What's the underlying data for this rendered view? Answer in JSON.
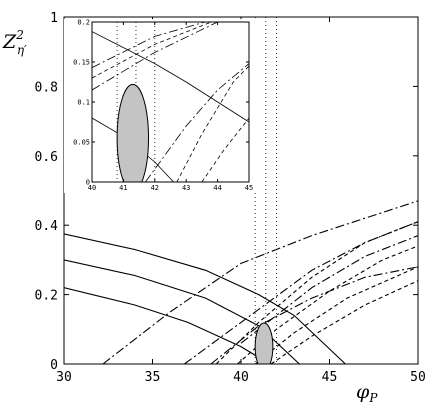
{
  "chart_data": [
    {
      "type": "line",
      "xlabel": "φ",
      "xlabel_sub": "P",
      "ylabel": "Z",
      "ylabel_sup": "2",
      "ylabel_sub": "η′",
      "xlim": [
        30,
        50
      ],
      "ylim": [
        0,
        1
      ],
      "x_ticks": [
        {
          "value": 30,
          "label": "30"
        },
        {
          "value": 35,
          "label": "35"
        },
        {
          "value": 40,
          "label": "40"
        },
        {
          "value": 45,
          "label": "45"
        },
        {
          "value": 50,
          "label": "50"
        }
      ],
      "y_ticks": [
        {
          "value": 0,
          "label": "0"
        },
        {
          "value": 0.2,
          "label": "0.2"
        },
        {
          "value": 0.4,
          "label": "0.4"
        },
        {
          "value": 0.6,
          "label": "0.6"
        },
        {
          "value": 0.8,
          "label": "0.8"
        },
        {
          "value": 1,
          "label": "1"
        }
      ],
      "grid": false,
      "legend": "none",
      "vertical_dotted_lines_x": [
        40.8,
        41.4,
        42.0
      ],
      "ellipse": {
        "cx": 41.3,
        "cy": 0.05,
        "rx": 0.5,
        "ry": 0.068,
        "fill": "#c4c4c4"
      },
      "series": [
        {
          "style": "solid",
          "x": [
            30,
            34,
            38,
            41,
            43,
            45.9
          ],
          "y": [
            0.375,
            0.33,
            0.27,
            0.2,
            0.14,
            0
          ]
        },
        {
          "style": "solid",
          "x": [
            30,
            34,
            38,
            41,
            43.3
          ],
          "y": [
            0.3,
            0.255,
            0.19,
            0.11,
            0
          ]
        },
        {
          "style": "solid",
          "x": [
            30,
            34,
            37,
            40,
            41.6
          ],
          "y": [
            0.22,
            0.17,
            0.12,
            0.05,
            0
          ]
        },
        {
          "style": "dashdot",
          "x": [
            32.2,
            36,
            40,
            44,
            50
          ],
          "y": [
            0,
            0.15,
            0.29,
            0.37,
            0.47
          ]
        },
        {
          "style": "dashdot",
          "x": [
            36.8,
            40,
            44,
            47,
            50
          ],
          "y": [
            0,
            0.12,
            0.27,
            0.35,
            0.41
          ]
        },
        {
          "style": "dashdot",
          "x": [
            40,
            44,
            47,
            50
          ],
          "y": [
            0.06,
            0.22,
            0.31,
            0.37
          ]
        },
        {
          "style": "dashdot",
          "x": [
            38.3,
            41,
            44,
            47,
            50
          ],
          "y": [
            0,
            0.11,
            0.19,
            0.25,
            0.28
          ]
        },
        {
          "style": "dashed",
          "x": [
            38.6,
            41,
            44,
            47,
            50
          ],
          "y": [
            0,
            0.12,
            0.25,
            0.35,
            0.41
          ]
        },
        {
          "style": "dashed",
          "x": [
            39.8,
            42,
            45,
            48,
            50
          ],
          "y": [
            0,
            0.1,
            0.21,
            0.3,
            0.34
          ]
        },
        {
          "style": "dashed",
          "x": [
            40.8,
            43,
            46,
            50
          ],
          "y": [
            0,
            0.09,
            0.19,
            0.28
          ]
        },
        {
          "style": "dashed",
          "x": [
            41.7,
            44,
            47,
            50
          ],
          "y": [
            0,
            0.08,
            0.17,
            0.24
          ]
        }
      ]
    },
    {
      "type": "line",
      "xlim": [
        40,
        45
      ],
      "ylim": [
        0,
        0.2
      ],
      "x_ticks": [
        {
          "value": 40,
          "label": "40"
        },
        {
          "value": 41,
          "label": "41"
        },
        {
          "value": 42,
          "label": "42"
        },
        {
          "value": 43,
          "label": "43"
        },
        {
          "value": 44,
          "label": "44"
        },
        {
          "value": 45,
          "label": "45"
        }
      ],
      "y_ticks": [
        {
          "value": 0,
          "label": "0"
        },
        {
          "value": 0.05,
          "label": "0.05"
        },
        {
          "value": 0.1,
          "label": "0.1"
        },
        {
          "value": 0.15,
          "label": "0.15"
        },
        {
          "value": 0.2,
          "label": "0.2"
        }
      ],
      "grid": false,
      "legend": "none",
      "vertical_dotted_lines_x": [
        40.8,
        41.4,
        42.0
      ],
      "ellipse": {
        "cx": 41.3,
        "cy": 0.055,
        "rx": 0.5,
        "ry": 0.067,
        "fill": "#c4c4c4"
      },
      "series": [
        {
          "style": "solid",
          "x": [
            40,
            41,
            42,
            43,
            44,
            45
          ],
          "y": [
            0.188,
            0.168,
            0.148,
            0.125,
            0.1,
            0.075
          ]
        },
        {
          "style": "solid",
          "x": [
            40,
            41,
            42,
            42.6
          ],
          "y": [
            0.08,
            0.057,
            0.025,
            0
          ]
        },
        {
          "style": "dashdot",
          "x": [
            41.7,
            43,
            44,
            45
          ],
          "y": [
            0,
            0.07,
            0.115,
            0.148
          ]
        },
        {
          "style": "dashdot",
          "x": [
            40,
            42,
            44,
            45
          ],
          "y": [
            0.115,
            0.162,
            0.2,
            0.2
          ]
        },
        {
          "style": "dashdot",
          "x": [
            40,
            42,
            43.6
          ],
          "y": [
            0.143,
            0.182,
            0.2
          ]
        },
        {
          "style": "dashed",
          "x": [
            40,
            42,
            43.8
          ],
          "y": [
            0.13,
            0.172,
            0.2
          ]
        },
        {
          "style": "dashed",
          "x": [
            42.7,
            43.5,
            44.5,
            45
          ],
          "y": [
            0,
            0.06,
            0.125,
            0.145
          ]
        },
        {
          "style": "dashed",
          "x": [
            43.5,
            44.2,
            45
          ],
          "y": [
            0,
            0.04,
            0.08
          ]
        }
      ]
    }
  ]
}
